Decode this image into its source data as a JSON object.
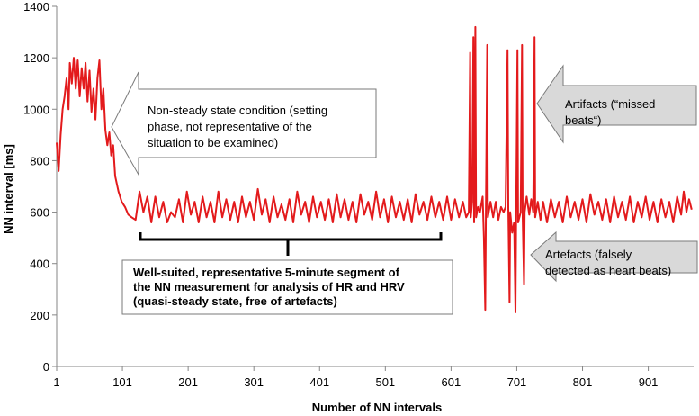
{
  "chart_data": {
    "type": "line",
    "xlabel": "Number of NN intervals",
    "ylabel": "NN interval [ms]",
    "xlim": [
      1,
      970
    ],
    "ylim": [
      0,
      1400
    ],
    "x_ticks": [
      1,
      101,
      201,
      301,
      401,
      501,
      601,
      701,
      801,
      901
    ],
    "y_ticks": [
      0,
      200,
      400,
      600,
      800,
      1000,
      1200,
      1400
    ],
    "grid": false,
    "legend": "none",
    "series": [
      {
        "color": "#e31a1c",
        "points": [
          [
            1,
            870
          ],
          [
            4,
            760
          ],
          [
            7,
            900
          ],
          [
            10,
            1000
          ],
          [
            13,
            1050
          ],
          [
            16,
            1120
          ],
          [
            19,
            1000
          ],
          [
            21,
            1180
          ],
          [
            24,
            1100
          ],
          [
            27,
            1200
          ],
          [
            30,
            1080
          ],
          [
            33,
            1190
          ],
          [
            36,
            1050
          ],
          [
            39,
            1160
          ],
          [
            42,
            1080
          ],
          [
            45,
            1180
          ],
          [
            48,
            1030
          ],
          [
            51,
            1150
          ],
          [
            54,
            990
          ],
          [
            57,
            1080
          ],
          [
            60,
            960
          ],
          [
            63,
            1120
          ],
          [
            66,
            1190
          ],
          [
            69,
            1000
          ],
          [
            72,
            1080
          ],
          [
            75,
            920
          ],
          [
            78,
            860
          ],
          [
            81,
            910
          ],
          [
            84,
            820
          ],
          [
            87,
            860
          ],
          [
            90,
            740
          ],
          [
            95,
            680
          ],
          [
            100,
            640
          ],
          [
            105,
            620
          ],
          [
            110,
            590
          ],
          [
            115,
            580
          ],
          [
            121,
            570
          ],
          [
            127,
            680
          ],
          [
            133,
            600
          ],
          [
            139,
            660
          ],
          [
            145,
            560
          ],
          [
            151,
            660
          ],
          [
            157,
            580
          ],
          [
            163,
            640
          ],
          [
            169,
            560
          ],
          [
            175,
            600
          ],
          [
            181,
            580
          ],
          [
            187,
            650
          ],
          [
            193,
            560
          ],
          [
            199,
            680
          ],
          [
            205,
            590
          ],
          [
            211,
            640
          ],
          [
            217,
            560
          ],
          [
            223,
            660
          ],
          [
            229,
            580
          ],
          [
            235,
            640
          ],
          [
            241,
            560
          ],
          [
            247,
            680
          ],
          [
            253,
            580
          ],
          [
            259,
            650
          ],
          [
            265,
            570
          ],
          [
            271,
            640
          ],
          [
            277,
            560
          ],
          [
            283,
            660
          ],
          [
            289,
            580
          ],
          [
            295,
            640
          ],
          [
            301,
            570
          ],
          [
            307,
            690
          ],
          [
            313,
            590
          ],
          [
            319,
            650
          ],
          [
            325,
            560
          ],
          [
            331,
            660
          ],
          [
            337,
            580
          ],
          [
            343,
            630
          ],
          [
            349,
            570
          ],
          [
            355,
            650
          ],
          [
            361,
            560
          ],
          [
            367,
            680
          ],
          [
            373,
            590
          ],
          [
            379,
            640
          ],
          [
            385,
            560
          ],
          [
            391,
            660
          ],
          [
            397,
            580
          ],
          [
            403,
            640
          ],
          [
            409,
            570
          ],
          [
            415,
            650
          ],
          [
            421,
            560
          ],
          [
            427,
            670
          ],
          [
            433,
            580
          ],
          [
            439,
            650
          ],
          [
            445,
            570
          ],
          [
            451,
            640
          ],
          [
            457,
            560
          ],
          [
            463,
            670
          ],
          [
            469,
            590
          ],
          [
            475,
            640
          ],
          [
            481,
            570
          ],
          [
            487,
            680
          ],
          [
            493,
            580
          ],
          [
            499,
            650
          ],
          [
            505,
            560
          ],
          [
            511,
            660
          ],
          [
            517,
            580
          ],
          [
            523,
            640
          ],
          [
            529,
            570
          ],
          [
            535,
            650
          ],
          [
            541,
            560
          ],
          [
            547,
            670
          ],
          [
            553,
            590
          ],
          [
            559,
            640
          ],
          [
            565,
            570
          ],
          [
            571,
            660
          ],
          [
            577,
            580
          ],
          [
            583,
            640
          ],
          [
            589,
            570
          ],
          [
            595,
            660
          ],
          [
            601,
            570
          ],
          [
            607,
            650
          ],
          [
            613,
            580
          ],
          [
            619,
            640
          ],
          [
            624,
            580
          ],
          [
            628,
            600
          ],
          [
            630,
            1220
          ],
          [
            631,
            580
          ],
          [
            633,
            640
          ],
          [
            635,
            1280
          ],
          [
            636,
            560
          ],
          [
            638,
            1320
          ],
          [
            639,
            580
          ],
          [
            642,
            620
          ],
          [
            645,
            600
          ],
          [
            649,
            660
          ],
          [
            651,
            500
          ],
          [
            653,
            220
          ],
          [
            654,
            590
          ],
          [
            656,
            1250
          ],
          [
            657,
            580
          ],
          [
            661,
            640
          ],
          [
            665,
            580
          ],
          [
            669,
            640
          ],
          [
            673,
            570
          ],
          [
            677,
            620
          ],
          [
            681,
            600
          ],
          [
            684,
            620
          ],
          [
            687,
            1230
          ],
          [
            688,
            620
          ],
          [
            690,
            250
          ],
          [
            691,
            600
          ],
          [
            694,
            520
          ],
          [
            697,
            560
          ],
          [
            699,
            210
          ],
          [
            700,
            560
          ],
          [
            702,
            1230
          ],
          [
            703,
            560
          ],
          [
            707,
            600
          ],
          [
            709,
            1250
          ],
          [
            710,
            580
          ],
          [
            712,
            320
          ],
          [
            713,
            600
          ],
          [
            716,
            660
          ],
          [
            720,
            590
          ],
          [
            723,
            650
          ],
          [
            726,
            600
          ],
          [
            728,
            1280
          ],
          [
            729,
            580
          ],
          [
            733,
            640
          ],
          [
            737,
            570
          ],
          [
            741,
            640
          ],
          [
            747,
            560
          ],
          [
            753,
            650
          ],
          [
            759,
            580
          ],
          [
            765,
            640
          ],
          [
            771,
            560
          ],
          [
            777,
            660
          ],
          [
            783,
            580
          ],
          [
            789,
            640
          ],
          [
            795,
            570
          ],
          [
            801,
            650
          ],
          [
            807,
            560
          ],
          [
            813,
            670
          ],
          [
            819,
            590
          ],
          [
            825,
            640
          ],
          [
            831,
            570
          ],
          [
            837,
            650
          ],
          [
            843,
            560
          ],
          [
            849,
            660
          ],
          [
            855,
            580
          ],
          [
            861,
            640
          ],
          [
            867,
            570
          ],
          [
            873,
            660
          ],
          [
            879,
            560
          ],
          [
            885,
            640
          ],
          [
            891,
            580
          ],
          [
            897,
            660
          ],
          [
            903,
            570
          ],
          [
            909,
            640
          ],
          [
            915,
            560
          ],
          [
            921,
            650
          ],
          [
            927,
            580
          ],
          [
            933,
            640
          ],
          [
            939,
            560
          ],
          [
            945,
            660
          ],
          [
            951,
            590
          ],
          [
            955,
            680
          ],
          [
            959,
            600
          ],
          [
            963,
            650
          ],
          [
            967,
            610
          ]
        ]
      }
    ],
    "annotations": {
      "non_steady": [
        "Non-steady state condition (setting",
        "phase, not representative of the",
        "situation to be examined)"
      ],
      "segment": [
        "Well-suited, representative 5-minute segment of",
        "the NN measurement for analysis of HR and HRV",
        "(quasi-steady state, free of artefacts)"
      ],
      "missed": [
        "Artifacts (“missed",
        "beats“)"
      ],
      "false_detect": [
        "Artefacts (falsely",
        "detected as heart beats)"
      ]
    }
  }
}
